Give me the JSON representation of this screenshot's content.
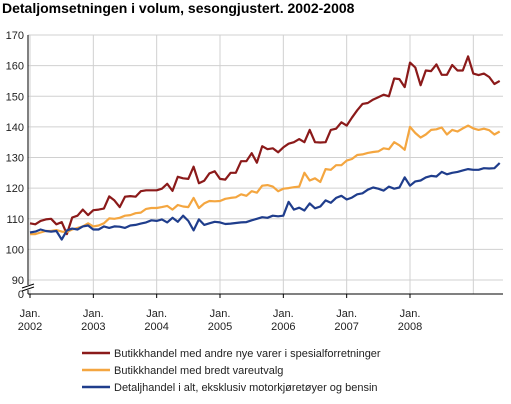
{
  "chart_data": {
    "type": "line",
    "title": "Detaljomsetningen i volum, sesongjustert. 2002-2008",
    "xlabel": "",
    "ylabel": "",
    "ylim": [
      0,
      170
    ],
    "axis_break": true,
    "yticks": [
      0,
      90,
      100,
      110,
      120,
      130,
      140,
      150,
      160,
      170
    ],
    "grid": true,
    "legend_position": "bottom",
    "x_tick_labels": [
      {
        "line1": "Jan.",
        "line2": "2002"
      },
      {
        "line1": "Jan.",
        "line2": "2003"
      },
      {
        "line1": "Jan.",
        "line2": "2004"
      },
      {
        "line1": "Jan.",
        "line2": "2005"
      },
      {
        "line1": "Jan.",
        "line2": "2006"
      },
      {
        "line1": "Jan.",
        "line2": "2007"
      },
      {
        "line1": "Jan.",
        "line2": "2008"
      }
    ],
    "x_start": "2002-01",
    "x_frequency": "monthly",
    "series": [
      {
        "name": "Butikkhandel med andre nye varer i spesialforretninger",
        "color": "#8b1a1a",
        "values": [
          108.5,
          108.2,
          109.3,
          109.8,
          110.0,
          108.2,
          108.9,
          105.0,
          110.4,
          111.0,
          113.0,
          111.2,
          112.8,
          113.0,
          113.3,
          117.3,
          116.0,
          113.8,
          117.2,
          117.4,
          117.2,
          119.0,
          119.3,
          119.3,
          119.3,
          119.8,
          121.4,
          119.1,
          123.7,
          123.2,
          123.0,
          127.0,
          121.6,
          122.4,
          124.8,
          125.5,
          123.0,
          122.8,
          125.0,
          125.0,
          128.8,
          128.8,
          131.4,
          128.3,
          133.7,
          132.7,
          133.0,
          131.7,
          133.3,
          134.5,
          135.0,
          136.0,
          135.0,
          139.0,
          135.0,
          134.9,
          135.0,
          139.0,
          139.4,
          141.5,
          140.4,
          143.0,
          145.4,
          147.5,
          147.8,
          148.9,
          149.7,
          150.5,
          150.0,
          155.8,
          155.6,
          153.0,
          161.0,
          159.4,
          153.6,
          158.4,
          158.2,
          160.4,
          157.0,
          157.0,
          160.2,
          158.4,
          158.4,
          163.0,
          157.4,
          156.9,
          157.4,
          156.3,
          154.0,
          155.0
        ]
      },
      {
        "name": "Butikkhandel med bredt vareutvalg",
        "color": "#f4a640",
        "values": [
          105.0,
          105.0,
          105.5,
          106.0,
          106.0,
          106.3,
          105.8,
          105.7,
          106.5,
          107.0,
          107.5,
          108.5,
          107.5,
          107.8,
          108.5,
          110.1,
          110.0,
          110.3,
          111.0,
          111.2,
          111.8,
          112.0,
          113.2,
          113.5,
          113.5,
          113.8,
          114.2,
          113.0,
          114.5,
          114.0,
          113.8,
          116.8,
          113.5,
          115.0,
          115.8,
          115.7,
          115.8,
          116.5,
          116.8,
          117.0,
          118.0,
          117.5,
          119.0,
          118.5,
          120.8,
          121.0,
          120.5,
          119.0,
          119.8,
          120.0,
          120.3,
          120.5,
          125.0,
          122.5,
          123.2,
          122.0,
          126.2,
          126.0,
          127.5,
          127.5,
          129.0,
          129.5,
          130.8,
          131.0,
          131.5,
          131.8,
          132.0,
          133.0,
          132.7,
          135.0,
          134.0,
          132.5,
          140.0,
          138.0,
          136.5,
          137.5,
          139.0,
          139.2,
          139.8,
          137.5,
          139.0,
          138.5,
          139.5,
          140.4,
          139.5,
          139.0,
          139.4,
          138.9,
          137.5,
          138.5
        ]
      },
      {
        "name": "Detaljhandel i alt, eksklusiv motorkjøretøyer og bensin",
        "color": "#1f3d8c",
        "values": [
          105.5,
          105.8,
          106.5,
          106.0,
          105.8,
          106.0,
          103.2,
          106.2,
          106.8,
          106.5,
          107.5,
          107.8,
          106.5,
          106.5,
          107.5,
          107.0,
          107.5,
          107.4,
          107.0,
          107.8,
          108.0,
          108.4,
          108.8,
          109.5,
          109.3,
          109.8,
          108.8,
          110.3,
          109.0,
          111.0,
          109.3,
          106.2,
          109.8,
          108.0,
          108.5,
          109.0,
          108.8,
          108.3,
          108.4,
          108.6,
          108.8,
          108.9,
          109.5,
          110.0,
          110.5,
          110.3,
          111.0,
          110.8,
          111.0,
          115.5,
          113.0,
          113.6,
          112.7,
          115.0,
          113.4,
          114.0,
          116.0,
          115.2,
          116.8,
          117.5,
          116.3,
          116.9,
          118.0,
          118.3,
          119.5,
          120.2,
          119.8,
          119.2,
          120.5,
          119.8,
          120.2,
          123.5,
          120.8,
          122.2,
          122.5,
          123.5,
          124.0,
          123.8,
          125.3,
          124.5,
          125.0,
          125.3,
          125.8,
          126.2,
          126.0,
          126.0,
          126.5,
          126.4,
          126.5,
          128.2
        ]
      }
    ]
  }
}
